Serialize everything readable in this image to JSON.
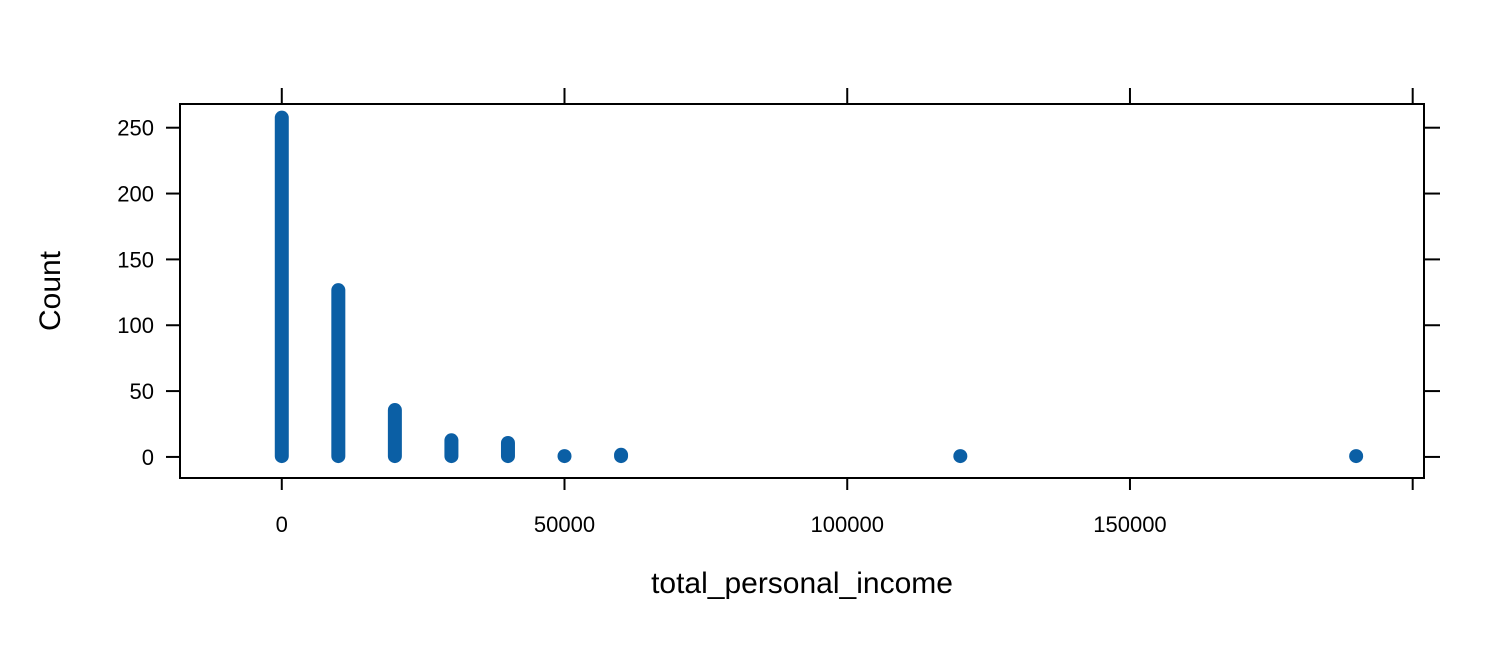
{
  "chart_data": {
    "type": "dotplot",
    "x": [
      0,
      10000,
      20000,
      30000,
      40000,
      50000,
      60000,
      120000,
      190000
    ],
    "counts": [
      258,
      127,
      36,
      13,
      11,
      1,
      2,
      1,
      1
    ],
    "xlabel": "total_personal_income",
    "ylabel": "Count",
    "xlim": [
      -18000,
      202000
    ],
    "ylim": [
      -16,
      268
    ],
    "xticks": [
      0,
      50000,
      100000,
      150000
    ],
    "yticks": [
      0,
      50,
      100,
      150,
      200,
      250
    ],
    "xtick_labels": [
      "0",
      "50000",
      "100000",
      "150000"
    ],
    "ytick_labels": [
      "0",
      "50",
      "100",
      "150",
      "200",
      "250"
    ],
    "color": "#0b5fa5",
    "grid": false
  }
}
